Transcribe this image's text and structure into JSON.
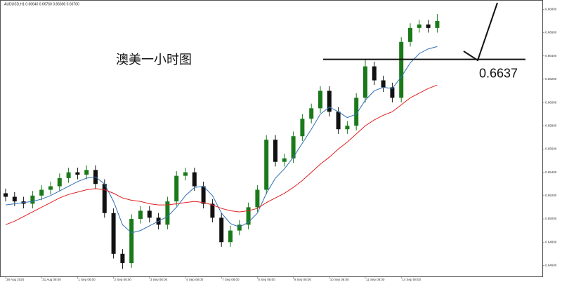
{
  "chart_data": {
    "type": "candlestick",
    "header": "AUDUSD,H1 0.66640 0.66760 0.66600 0.66700",
    "title": "澳美一小时图",
    "level": 0.6637,
    "up_color": "#1a7a1a",
    "down_color": "#111111",
    "categories": [
      "28 Aug 2020",
      null,
      null,
      null,
      "31 Aug 08:00",
      null,
      null,
      null,
      "1 Sep 08:00",
      null,
      null,
      null,
      "2 Sep 08:00",
      null,
      null,
      null,
      "3 Sep 08:00",
      null,
      null,
      null,
      "4 Sep 08:00",
      null,
      null,
      null,
      "7 Sep 08:00",
      null,
      null,
      null,
      "8 Sep 08:00",
      null,
      null,
      null,
      "9 Sep 08:00",
      null,
      null,
      null,
      "10 Sep 08:00",
      null,
      null,
      null,
      "11 Sep 08:00",
      null,
      null,
      null,
      "14 Sep 08:00",
      null,
      null,
      null,
      null
    ],
    "open": [
      0.6522,
      0.6519,
      0.6515,
      0.6513,
      0.652,
      0.6525,
      0.6528,
      0.6535,
      0.654,
      0.6538,
      0.6542,
      0.653,
      0.6505,
      0.647,
      0.6462,
      0.65,
      0.6507,
      0.6501,
      0.6495,
      0.6515,
      0.6537,
      0.654,
      0.6528,
      0.6513,
      0.6501,
      0.648,
      0.649,
      0.6495,
      0.651,
      0.6525,
      0.6568,
      0.6549,
      0.6552,
      0.6571,
      0.6586,
      0.6595,
      0.661,
      0.6592,
      0.6577,
      0.658,
      0.6604,
      0.6631,
      0.6619,
      0.6613,
      0.6604,
      0.6652,
      0.6664,
      0.6667,
      0.6664
    ],
    "high": [
      0.6526,
      0.6523,
      0.6519,
      0.6524,
      0.6529,
      0.6532,
      0.6539,
      0.6544,
      0.6544,
      0.6546,
      0.6546,
      0.6534,
      0.6509,
      0.6474,
      0.6504,
      0.6511,
      0.6511,
      0.6505,
      0.6519,
      0.6541,
      0.6544,
      0.6544,
      0.6532,
      0.6517,
      0.6505,
      0.6494,
      0.6499,
      0.6514,
      0.6529,
      0.6572,
      0.6572,
      0.6556,
      0.6575,
      0.659,
      0.6599,
      0.6614,
      0.6614,
      0.6596,
      0.6584,
      0.6608,
      0.6637,
      0.6635,
      0.6623,
      0.6617,
      0.6656,
      0.6668,
      0.6671,
      0.6671,
      0.6676
    ],
    "low": [
      0.6515,
      0.6511,
      0.6509,
      0.6509,
      0.6516,
      0.6521,
      0.6524,
      0.6531,
      0.6534,
      0.6534,
      0.6526,
      0.6501,
      0.6466,
      0.6457,
      0.6458,
      0.6496,
      0.6497,
      0.6491,
      0.6491,
      0.6511,
      0.6533,
      0.6524,
      0.6509,
      0.6497,
      0.6476,
      0.6476,
      0.6486,
      0.6491,
      0.6506,
      0.6521,
      0.6545,
      0.6545,
      0.6548,
      0.6567,
      0.6582,
      0.6591,
      0.6588,
      0.6573,
      0.6573,
      0.6576,
      0.66,
      0.6615,
      0.6609,
      0.66,
      0.66,
      0.6648,
      0.666,
      0.666,
      0.666
    ],
    "close": [
      0.6519,
      0.6515,
      0.6513,
      0.652,
      0.6525,
      0.6528,
      0.6535,
      0.654,
      0.6538,
      0.6542,
      0.653,
      0.6505,
      0.647,
      0.6462,
      0.65,
      0.6507,
      0.6501,
      0.6495,
      0.6515,
      0.6537,
      0.654,
      0.6528,
      0.6513,
      0.6501,
      0.648,
      0.649,
      0.6495,
      0.651,
      0.6525,
      0.6568,
      0.6549,
      0.6552,
      0.6571,
      0.6586,
      0.6595,
      0.661,
      0.6592,
      0.6577,
      0.658,
      0.6604,
      0.6631,
      0.6619,
      0.6613,
      0.6604,
      0.6652,
      0.6664,
      0.6667,
      0.6664,
      0.667
    ],
    "lines": [
      {
        "color": "#2f6fb5",
        "values": [
          0.6512,
          0.6513,
          0.6514,
          0.6515,
          0.6517,
          0.652,
          0.6524,
          0.6528,
          0.6532,
          0.6535,
          0.6536,
          0.653,
          0.6515,
          0.6495,
          0.6488,
          0.649,
          0.6494,
          0.6498,
          0.6502,
          0.651,
          0.652,
          0.6527,
          0.6528,
          0.652,
          0.6505,
          0.6496,
          0.6493,
          0.6497,
          0.6505,
          0.6522,
          0.6535,
          0.6543,
          0.6553,
          0.6565,
          0.6577,
          0.659,
          0.6596,
          0.6592,
          0.6587,
          0.659,
          0.6602,
          0.661,
          0.6613,
          0.6612,
          0.6622,
          0.6634,
          0.6642,
          0.6646,
          0.6648
        ]
      },
      {
        "color": "#e02020",
        "values": [
          0.6495,
          0.6498,
          0.6502,
          0.6506,
          0.651,
          0.6514,
          0.6518,
          0.6521,
          0.6523,
          0.6525,
          0.6526,
          0.6525,
          0.6522,
          0.6518,
          0.6516,
          0.6515,
          0.6513,
          0.6512,
          0.6512,
          0.6513,
          0.6514,
          0.6515,
          0.6514,
          0.6512,
          0.6509,
          0.6507,
          0.6506,
          0.6507,
          0.6509,
          0.6514,
          0.6518,
          0.6522,
          0.6527,
          0.6533,
          0.654,
          0.6547,
          0.6553,
          0.656,
          0.6566,
          0.6573,
          0.658,
          0.6585,
          0.6589,
          0.6592,
          0.6598,
          0.6604,
          0.6608,
          0.6612,
          0.6615
        ]
      }
    ],
    "ylim": [
      0.645,
      0.6685
    ],
    "yticks": [
      {
        "value": 0.646,
        "label": "0.64600"
      },
      {
        "value": 0.648,
        "label": "0.64800"
      },
      {
        "value": 0.65,
        "label": "0.65000"
      },
      {
        "value": 0.652,
        "label": "0.65200"
      },
      {
        "value": 0.654,
        "label": "0.65400"
      },
      {
        "value": 0.656,
        "label": "0.65600"
      },
      {
        "value": 0.658,
        "label": "0.65800"
      },
      {
        "value": 0.66,
        "label": "0.66000"
      },
      {
        "value": 0.662,
        "label": "0.66200"
      },
      {
        "value": 0.664,
        "label": "0.66400"
      },
      {
        "value": 0.666,
        "label": "0.66600"
      },
      {
        "value": 0.668,
        "label": "0.66800"
      }
    ]
  }
}
